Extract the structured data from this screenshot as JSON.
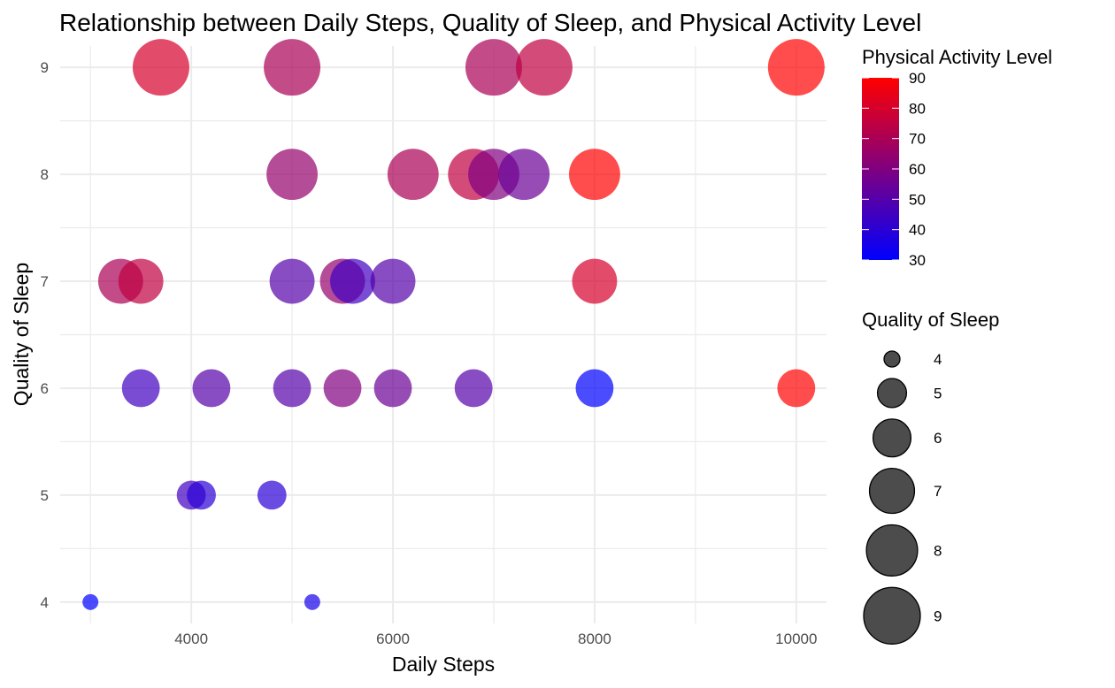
{
  "chart_data": {
    "type": "scatter",
    "title": "Relationship between Daily Steps, Quality of Sleep, and Physical Activity Level",
    "xlabel": "Daily Steps",
    "ylabel": "Quality of Sleep",
    "xlim": [
      2700,
      10300
    ],
    "ylim": [
      3.8,
      9.2
    ],
    "x_ticks": [
      4000,
      6000,
      8000,
      10000
    ],
    "y_ticks": [
      4,
      5,
      6,
      7,
      8,
      9
    ],
    "grid": true,
    "color_legend": {
      "title": "Physical Activity Level",
      "range": [
        30,
        90
      ],
      "ticks": [
        30,
        40,
        50,
        60,
        70,
        80,
        90
      ],
      "low_color": "#0000ff",
      "mid_color": "#800080",
      "high_color": "#ff0000",
      "placement": "right"
    },
    "size_legend": {
      "title": "Quality of Sleep",
      "values": [
        4,
        5,
        6,
        7,
        8,
        9
      ],
      "placement": "right"
    },
    "points": [
      {
        "x": 3700,
        "y": 9,
        "size": 9,
        "color": 80
      },
      {
        "x": 5000,
        "y": 9,
        "size": 9,
        "color": 70
      },
      {
        "x": 7000,
        "y": 9,
        "size": 9,
        "color": 70
      },
      {
        "x": 7500,
        "y": 9,
        "size": 9,
        "color": 75
      },
      {
        "x": 10000,
        "y": 9,
        "size": 9,
        "color": 90
      },
      {
        "x": 5000,
        "y": 8,
        "size": 8,
        "color": 65
      },
      {
        "x": 6200,
        "y": 8,
        "size": 8,
        "color": 70
      },
      {
        "x": 6800,
        "y": 8,
        "size": 8,
        "color": 75
      },
      {
        "x": 7000,
        "y": 8,
        "size": 8,
        "color": 60
      },
      {
        "x": 7300,
        "y": 8,
        "size": 8,
        "color": 55
      },
      {
        "x": 8000,
        "y": 8,
        "size": 8,
        "color": 90
      },
      {
        "x": 3300,
        "y": 7,
        "size": 7,
        "color": 70
      },
      {
        "x": 3500,
        "y": 7,
        "size": 7,
        "color": 75
      },
      {
        "x": 5000,
        "y": 7,
        "size": 7,
        "color": 50
      },
      {
        "x": 5500,
        "y": 7,
        "size": 7,
        "color": 65
      },
      {
        "x": 5600,
        "y": 7,
        "size": 7,
        "color": 45
      },
      {
        "x": 6000,
        "y": 7,
        "size": 7,
        "color": 50
      },
      {
        "x": 8000,
        "y": 7,
        "size": 7,
        "color": 80
      },
      {
        "x": 3500,
        "y": 6,
        "size": 6,
        "color": 45
      },
      {
        "x": 4200,
        "y": 6,
        "size": 6,
        "color": 50
      },
      {
        "x": 5000,
        "y": 6,
        "size": 6,
        "color": 50
      },
      {
        "x": 5500,
        "y": 6,
        "size": 6,
        "color": 60
      },
      {
        "x": 6000,
        "y": 6,
        "size": 6,
        "color": 55
      },
      {
        "x": 6800,
        "y": 6,
        "size": 6,
        "color": 50
      },
      {
        "x": 8000,
        "y": 6,
        "size": 6,
        "color": 30
      },
      {
        "x": 10000,
        "y": 6,
        "size": 6,
        "color": 90
      },
      {
        "x": 4000,
        "y": 5,
        "size": 5,
        "color": 45
      },
      {
        "x": 4100,
        "y": 5,
        "size": 5,
        "color": 40
      },
      {
        "x": 4800,
        "y": 5,
        "size": 5,
        "color": 40
      },
      {
        "x": 3000,
        "y": 4,
        "size": 4,
        "color": 30
      },
      {
        "x": 5200,
        "y": 4,
        "size": 4,
        "color": 35
      }
    ]
  }
}
